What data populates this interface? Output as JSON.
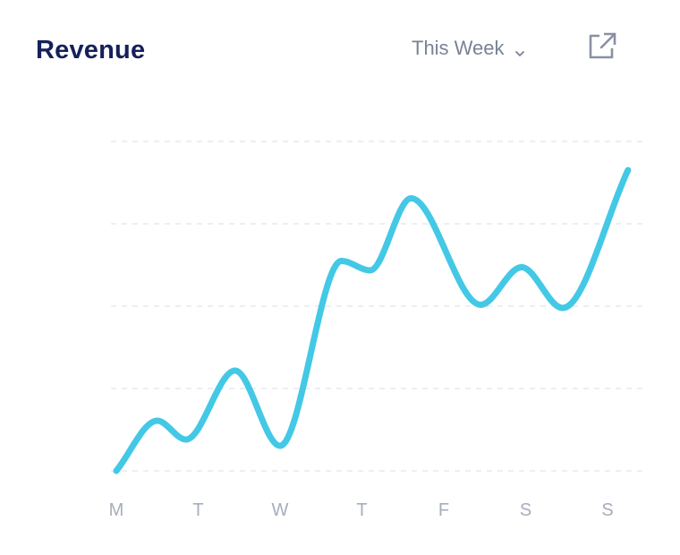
{
  "header": {
    "title": "Revenue",
    "period_label": "This Week"
  },
  "icons": {
    "period_dropdown": "chevron-down-icon",
    "expand": "external-link-icon"
  },
  "colors": {
    "title": "#14215a",
    "line": "#43c8e6",
    "grid": "#e6e9ef",
    "muted": "#7b8297",
    "tick": "#a7adbd"
  },
  "chart_data": {
    "type": "line",
    "categories": [
      "M",
      "T",
      "W",
      "T",
      "F",
      "S",
      "S"
    ],
    "grid": true,
    "legend": "none",
    "ylim": [
      0,
      100
    ],
    "series": [
      {
        "x": [
          0,
          0.5,
          0.85,
          1.45,
          2.0,
          2.75,
          3.1,
          3.6,
          4.45,
          4.95,
          5.45,
          6.25
        ],
        "values": [
          0,
          16,
          10,
          32,
          8,
          67,
          64,
          87,
          53,
          65,
          52,
          96
        ]
      }
    ]
  }
}
